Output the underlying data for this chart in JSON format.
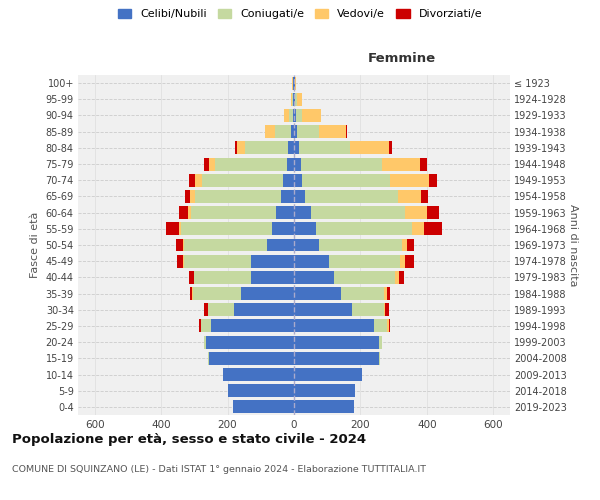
{
  "age_groups": [
    "0-4",
    "5-9",
    "10-14",
    "15-19",
    "20-24",
    "25-29",
    "30-34",
    "35-39",
    "40-44",
    "45-49",
    "50-54",
    "55-59",
    "60-64",
    "65-69",
    "70-74",
    "75-79",
    "80-84",
    "85-89",
    "90-94",
    "95-99",
    "100+"
  ],
  "birth_years": [
    "2019-2023",
    "2014-2018",
    "2009-2013",
    "2004-2008",
    "1999-2003",
    "1994-1998",
    "1989-1993",
    "1984-1988",
    "1979-1983",
    "1974-1978",
    "1969-1973",
    "1964-1968",
    "1959-1963",
    "1954-1958",
    "1949-1953",
    "1944-1948",
    "1939-1943",
    "1934-1938",
    "1929-1933",
    "1924-1928",
    "≤ 1923"
  ],
  "males": {
    "celibi": [
      185,
      200,
      215,
      255,
      265,
      250,
      180,
      160,
      130,
      130,
      80,
      65,
      55,
      38,
      32,
      22,
      18,
      8,
      4,
      3,
      2
    ],
    "coniugati": [
      0,
      0,
      0,
      5,
      5,
      30,
      80,
      145,
      170,
      200,
      250,
      275,
      255,
      260,
      245,
      215,
      130,
      50,
      10,
      3,
      2
    ],
    "vedovi": [
      0,
      0,
      0,
      0,
      0,
      0,
      0,
      2,
      2,
      3,
      5,
      5,
      10,
      15,
      20,
      20,
      25,
      30,
      15,
      3,
      1
    ],
    "divorziati": [
      0,
      0,
      0,
      0,
      0,
      5,
      10,
      5,
      15,
      20,
      20,
      40,
      25,
      15,
      20,
      15,
      5,
      0,
      0,
      0,
      0
    ]
  },
  "females": {
    "nubili": [
      180,
      185,
      205,
      255,
      255,
      240,
      175,
      140,
      120,
      105,
      75,
      65,
      50,
      32,
      25,
      20,
      15,
      10,
      5,
      3,
      2
    ],
    "coniugate": [
      0,
      0,
      0,
      5,
      10,
      40,
      95,
      130,
      185,
      215,
      250,
      290,
      285,
      280,
      265,
      245,
      155,
      65,
      20,
      5,
      2
    ],
    "vedove": [
      0,
      0,
      0,
      0,
      0,
      5,
      5,
      10,
      10,
      15,
      15,
      35,
      65,
      70,
      115,
      115,
      115,
      80,
      55,
      15,
      3
    ],
    "divorziate": [
      0,
      0,
      0,
      0,
      0,
      5,
      10,
      10,
      15,
      25,
      20,
      55,
      35,
      20,
      25,
      20,
      10,
      5,
      0,
      0,
      0
    ]
  },
  "colors": {
    "celibi": "#4472C4",
    "coniugati": "#c5d9a0",
    "vedovi": "#ffc869",
    "divorziati": "#cc0000"
  },
  "title": "Popolazione per età, sesso e stato civile - 2024",
  "subtitle": "COMUNE DI SQUINZANO (LE) - Dati ISTAT 1° gennaio 2024 - Elaborazione TUTTITALIA.IT",
  "xlabel_right": "Femmine",
  "ylabel_left": "Fasce di età",
  "ylabel_right": "Anni di nascita",
  "xlim": 650,
  "legend_labels": [
    "Celibi/Nubili",
    "Coniugati/e",
    "Vedovi/e",
    "Divorziati/e"
  ],
  "background_color": "#ffffff",
  "bar_height": 0.8
}
